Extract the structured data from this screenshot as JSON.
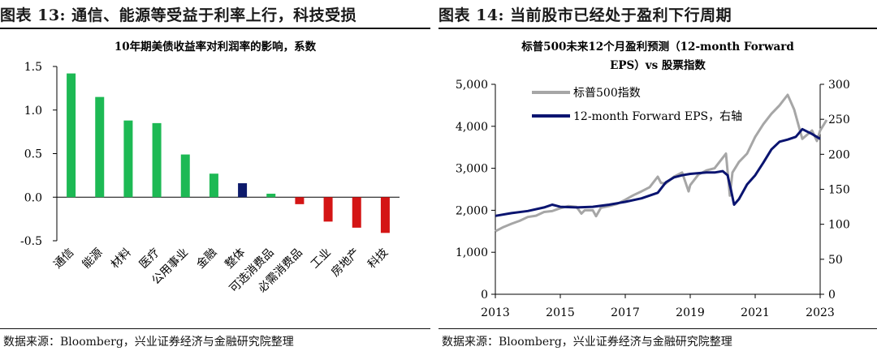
{
  "left_panel": {
    "figure_title": "图表 13:  通信、能源等受益于利率上行，科技受损",
    "source": "数据来源：Bloomberg，兴业证券经济与金融研究院整理"
  },
  "right_panel": {
    "figure_title": "图表 14:  当前股市已经处于盈利下行周期",
    "source": "数据来源：Bloomberg，兴业证券经济与金融研究院整理"
  },
  "colors": {
    "positive_bar": "#1db954",
    "neutral_bar": "#0d1a6b",
    "negative_bar": "#d41515",
    "sp500_line": "#a6a6a6",
    "eps_line": "#0a1470"
  },
  "chart_data": [
    {
      "type": "bar",
      "title": "10年期美债收益率对利润率的影响，系数",
      "categories": [
        "通信",
        "能源",
        "材料",
        "医疗",
        "公用事业",
        "金融",
        "整体",
        "可选消费品",
        "必需消费品",
        "工业",
        "房地产",
        "科技"
      ],
      "values": [
        1.42,
        1.15,
        0.88,
        0.85,
        0.49,
        0.27,
        0.16,
        0.04,
        -0.08,
        -0.28,
        -0.35,
        -0.41
      ],
      "highlight_category": "整体",
      "yticks": [
        "-0.5",
        "0.0",
        "0.5",
        "1.0",
        "1.5"
      ],
      "ylim": [
        -0.5,
        1.5
      ],
      "grid": false,
      "legend": "none"
    },
    {
      "type": "line",
      "title_line1": "标普500未来12个月盈利预测（12-month Forward",
      "title_line2": "EPS）vs 股票指数",
      "xticks": [
        "2013",
        "2015",
        "2017",
        "2019",
        "2021",
        "2023"
      ],
      "xlim": [
        2013,
        2023
      ],
      "yticks_left": [
        "0",
        "1,000",
        "2,000",
        "3,000",
        "4,000",
        "5,000"
      ],
      "ylim_left": [
        0,
        5000
      ],
      "yticks_right": [
        "0",
        "50",
        "100",
        "150",
        "200",
        "250",
        "300"
      ],
      "ylim_right": [
        0,
        300
      ],
      "grid": false,
      "legend": "top-left",
      "series": [
        {
          "name": "标普500指数",
          "axis": "left",
          "x": [
            2013.0,
            2013.25,
            2013.5,
            2013.75,
            2014.0,
            2014.25,
            2014.5,
            2014.75,
            2015.0,
            2015.25,
            2015.5,
            2015.65,
            2015.75,
            2016.0,
            2016.1,
            2016.25,
            2016.5,
            2016.75,
            2017.0,
            2017.25,
            2017.5,
            2017.75,
            2018.0,
            2018.1,
            2018.25,
            2018.5,
            2018.75,
            2018.95,
            2019.0,
            2019.25,
            2019.5,
            2019.75,
            2020.0,
            2020.1,
            2020.22,
            2020.3,
            2020.5,
            2020.75,
            2021.0,
            2021.25,
            2021.5,
            2021.75,
            2022.0,
            2022.2,
            2022.45,
            2022.75,
            2022.9,
            2023.0,
            2023.2
          ],
          "values": [
            1500,
            1600,
            1680,
            1750,
            1840,
            1870,
            1960,
            1980,
            2050,
            2100,
            2080,
            1920,
            2000,
            2000,
            1860,
            2060,
            2100,
            2150,
            2250,
            2360,
            2450,
            2550,
            2800,
            2650,
            2640,
            2800,
            2900,
            2450,
            2600,
            2850,
            2950,
            3000,
            3250,
            3350,
            2350,
            2900,
            3150,
            3350,
            3750,
            4050,
            4300,
            4500,
            4750,
            4400,
            3700,
            3900,
            3650,
            3900,
            4150
          ]
        },
        {
          "name": "12-month Forward EPS，右轴",
          "axis": "right",
          "x": [
            2013.0,
            2013.5,
            2014.0,
            2014.5,
            2014.75,
            2015.0,
            2015.5,
            2016.0,
            2016.5,
            2017.0,
            2017.5,
            2018.0,
            2018.25,
            2018.5,
            2018.75,
            2019.0,
            2019.25,
            2019.5,
            2019.75,
            2020.0,
            2020.15,
            2020.25,
            2020.35,
            2020.5,
            2020.75,
            2021.0,
            2021.25,
            2021.5,
            2021.75,
            2022.0,
            2022.25,
            2022.45,
            2022.75,
            2023.0
          ],
          "values": [
            112,
            116,
            119,
            124,
            128,
            125,
            124,
            125,
            128,
            132,
            137,
            145,
            160,
            167,
            170,
            172,
            173,
            174,
            174,
            176,
            170,
            150,
            128,
            136,
            157,
            170,
            188,
            207,
            218,
            221,
            225,
            236,
            229,
            222
          ]
        }
      ]
    }
  ]
}
